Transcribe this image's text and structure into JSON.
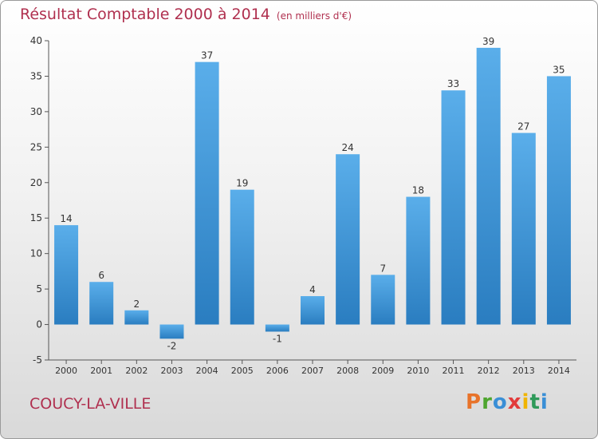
{
  "header": {
    "title": "Résultat Comptable 2000 à 2014",
    "unit": "(en milliers d'€)"
  },
  "footer": {
    "commune": "COUCY-LA-VILLE",
    "logo": {
      "letters": [
        "P",
        "r",
        "o",
        "x",
        "i",
        "t",
        "i"
      ],
      "colors": [
        "#e8732a",
        "#4ea52f",
        "#3a8fd6",
        "#e23b3b",
        "#f0b400",
        "#2f9a5a",
        "#3a8fd6"
      ]
    }
  },
  "chart_data": {
    "type": "bar",
    "title": "Résultat Comptable 2000 à 2014",
    "subtitle": "(en milliers d'€)",
    "xlabel": "",
    "ylabel": "",
    "categories": [
      "2000",
      "2001",
      "2002",
      "2003",
      "2004",
      "2005",
      "2006",
      "2007",
      "2008",
      "2009",
      "2010",
      "2011",
      "2012",
      "2013",
      "2014"
    ],
    "values": [
      14,
      6,
      2,
      -2,
      37,
      19,
      -1,
      4,
      24,
      7,
      18,
      33,
      39,
      27,
      35
    ],
    "ylim": [
      -5,
      40
    ],
    "yticks": [
      -5,
      0,
      5,
      10,
      15,
      20,
      25,
      30,
      35,
      40
    ],
    "grid": false,
    "colors": {
      "bar_top": "#5aaeea",
      "bar_bottom": "#2a7dc0",
      "axis": "#333333",
      "label": "#333333"
    }
  }
}
